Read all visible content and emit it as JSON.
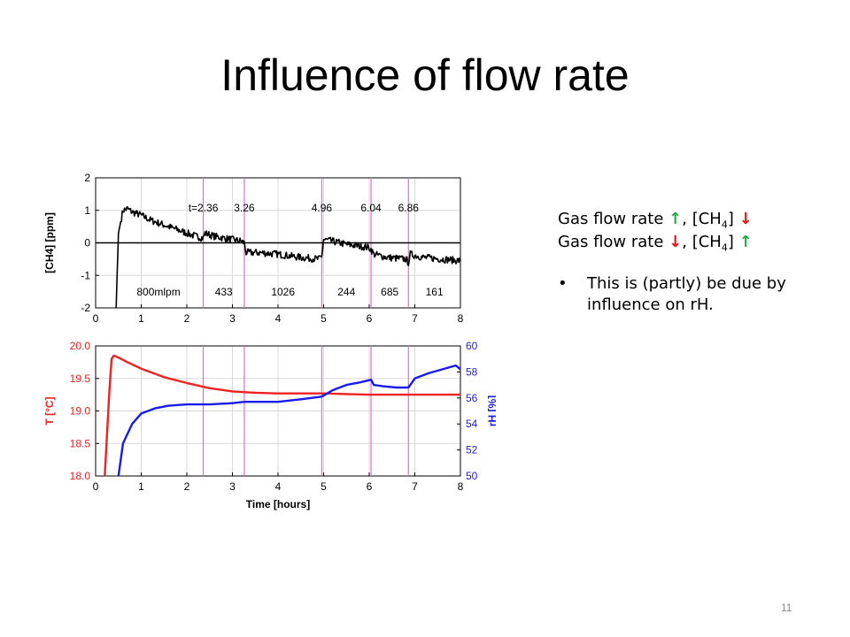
{
  "slide": {
    "title": "Influence of flow rate",
    "page_number": "11"
  },
  "notes": {
    "line1": {
      "prefix": "Gas flow rate ",
      "arrow1": "↑",
      "mid": ", [CH",
      "sub": "4",
      "suffix": "] ",
      "arrow2": "↓"
    },
    "line2": {
      "prefix": "Gas flow rate ",
      "arrow1": "↓",
      "mid": ", [CH",
      "sub": "4",
      "suffix": "] ",
      "arrow2": "↑"
    },
    "bullet_char": "•",
    "bullets": [
      "This is (partly) be due by influence on rH."
    ],
    "up_color": "#22aa44",
    "down_color": "#ee1111"
  },
  "chart_data": [
    {
      "type": "line",
      "title": "",
      "xlabel": "",
      "ylabel": "[CH4] [ppm]",
      "xlim": [
        0,
        8
      ],
      "ylim": [
        -2,
        2
      ],
      "x_ticks": [
        0,
        1,
        2,
        3,
        4,
        5,
        6,
        7,
        8
      ],
      "y_ticks": [
        2,
        1,
        0,
        -1,
        -2
      ],
      "grid": true,
      "reference_line_y": 0,
      "vertical_markers": [
        2.36,
        3.26,
        4.96,
        6.04,
        6.86
      ],
      "marker_color": "#ee66cc",
      "annotations_top": [
        "t=2.36",
        "3.26",
        "4.96",
        "6.04",
        "6.86"
      ],
      "annotations_bottom": [
        "800mlpm",
        "433",
        "1026",
        "244",
        "685",
        "161"
      ],
      "series": [
        {
          "name": "",
          "color": "#000000",
          "x": [
            0.45,
            0.5,
            0.6,
            0.7,
            0.8,
            1.0,
            1.2,
            1.5,
            1.8,
            2.0,
            2.2,
            2.36,
            2.4,
            2.6,
            2.8,
            3.0,
            3.2,
            3.26,
            3.3,
            3.6,
            4.0,
            4.5,
            4.9,
            4.96,
            5.0,
            5.2,
            5.5,
            5.8,
            6.0,
            6.04,
            6.1,
            6.4,
            6.8,
            6.86,
            6.9,
            7.2,
            7.6,
            8.0
          ],
          "y": [
            -2.0,
            0.3,
            1.0,
            1.05,
            0.95,
            0.85,
            0.7,
            0.55,
            0.4,
            0.3,
            0.2,
            0.15,
            0.3,
            0.2,
            0.15,
            0.1,
            0.05,
            0.0,
            -0.3,
            -0.3,
            -0.35,
            -0.45,
            -0.5,
            -0.4,
            0.1,
            0.05,
            -0.05,
            -0.1,
            -0.15,
            -0.2,
            -0.35,
            -0.45,
            -0.5,
            -0.6,
            -0.35,
            -0.45,
            -0.5,
            -0.55
          ]
        }
      ]
    },
    {
      "type": "line",
      "title": "",
      "xlabel": "Time [hours]",
      "ylabel": "T [°C]",
      "ylabel_right": "rH [%]",
      "xlim": [
        0,
        8
      ],
      "ylim": [
        18.0,
        20.0
      ],
      "ylim_right": [
        50,
        60
      ],
      "x_ticks": [
        0,
        1,
        2,
        3,
        4,
        5,
        6,
        7,
        8
      ],
      "y_ticks": [
        "20.0",
        "19.5",
        "19.0",
        "18.5",
        "18.0"
      ],
      "y_ticks_right": [
        60,
        58,
        56,
        54,
        52,
        50
      ],
      "grid": true,
      "vertical_markers": [
        2.36,
        3.26,
        4.96,
        6.04,
        6.86
      ],
      "marker_color": "#ee66cc",
      "series": [
        {
          "name": "T [°C]",
          "axis": "left",
          "color": "#ee2222",
          "x": [
            0.2,
            0.3,
            0.35,
            0.4,
            0.5,
            0.7,
            1.0,
            1.5,
            2.0,
            2.5,
            3.0,
            3.5,
            4.0,
            4.5,
            5.0,
            5.5,
            6.0,
            6.5,
            7.0,
            7.5,
            8.0
          ],
          "y": [
            18.0,
            19.3,
            19.8,
            19.85,
            19.82,
            19.75,
            19.65,
            19.52,
            19.43,
            19.35,
            19.3,
            19.28,
            19.27,
            19.27,
            19.27,
            19.26,
            19.25,
            19.25,
            19.25,
            19.25,
            19.25
          ]
        },
        {
          "name": "rH [%]",
          "axis": "right",
          "color": "#1a1aee",
          "x": [
            0.5,
            0.6,
            0.8,
            1.0,
            1.3,
            1.6,
            2.0,
            2.36,
            2.5,
            3.0,
            3.26,
            3.5,
            4.0,
            4.5,
            4.96,
            5.2,
            5.5,
            5.8,
            6.04,
            6.1,
            6.3,
            6.6,
            6.86,
            7.0,
            7.3,
            7.6,
            7.9,
            8.0
          ],
          "y": [
            50.0,
            52.5,
            54.0,
            54.8,
            55.2,
            55.4,
            55.5,
            55.5,
            55.5,
            55.6,
            55.7,
            55.7,
            55.7,
            55.9,
            56.1,
            56.6,
            57.0,
            57.2,
            57.4,
            57.0,
            56.9,
            56.8,
            56.8,
            57.5,
            57.9,
            58.2,
            58.5,
            58.2
          ]
        }
      ]
    }
  ]
}
